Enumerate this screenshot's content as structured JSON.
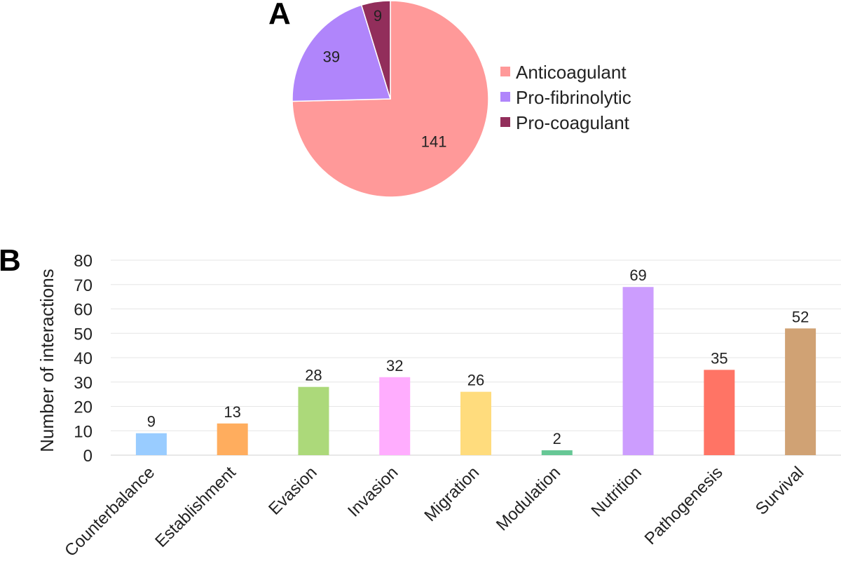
{
  "panels": {
    "a_label": "A",
    "b_label": "B"
  },
  "chart_data": [
    {
      "type": "pie",
      "start": "top, clockwise",
      "slices": [
        {
          "label": "Anticoagulant",
          "value": 141,
          "color": "#ff9999"
        },
        {
          "label": "Pro-fibrinolytic",
          "value": 39,
          "color": "#b085fb"
        },
        {
          "label": "Pro-coagulant",
          "value": 9,
          "color": "#922e5b"
        }
      ],
      "legend": "right"
    },
    {
      "type": "bar",
      "ylabel": "Number of interactions",
      "ylim": [
        0,
        80
      ],
      "yticks": [
        "0",
        "10",
        "20",
        "30",
        "40",
        "50",
        "60",
        "70",
        "80"
      ],
      "grid": "horizontal",
      "categories": [
        "Counterbalance",
        "Establishment",
        "Evasion",
        "Invasion",
        "Migration",
        "Modulation",
        "Nutrition",
        "Pathogenesis",
        "Survival"
      ],
      "values": [
        9,
        13,
        28,
        32,
        26,
        2,
        69,
        35,
        52
      ],
      "colors": [
        "#99ccff",
        "#ffad5e",
        "#acd97a",
        "#ffadfe",
        "#ffdc7d",
        "#66c795",
        "#cc9dfe",
        "#ff7465",
        "#d0a274"
      ]
    }
  ]
}
